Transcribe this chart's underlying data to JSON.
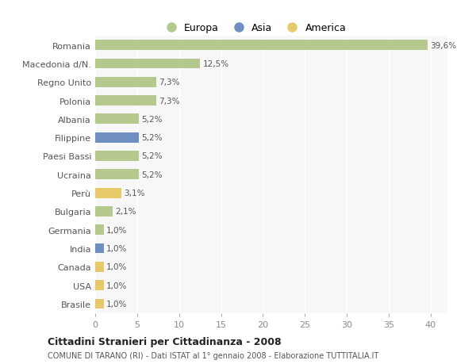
{
  "categories": [
    "Romania",
    "Macedonia d/N.",
    "Regno Unito",
    "Polonia",
    "Albania",
    "Filippine",
    "Paesi Bassi",
    "Ucraina",
    "Perù",
    "Bulgaria",
    "Germania",
    "India",
    "Canada",
    "USA",
    "Brasile"
  ],
  "values": [
    39.6,
    12.5,
    7.3,
    7.3,
    5.2,
    5.2,
    5.2,
    5.2,
    3.1,
    2.1,
    1.0,
    1.0,
    1.0,
    1.0,
    1.0
  ],
  "continents": [
    "Europa",
    "Europa",
    "Europa",
    "Europa",
    "Europa",
    "Asia",
    "Europa",
    "Europa",
    "America",
    "Europa",
    "Europa",
    "Asia",
    "America",
    "America",
    "America"
  ],
  "labels": [
    "39,6%",
    "12,5%",
    "7,3%",
    "7,3%",
    "5,2%",
    "5,2%",
    "5,2%",
    "5,2%",
    "3,1%",
    "2,1%",
    "1,0%",
    "1,0%",
    "1,0%",
    "1,0%",
    "1,0%"
  ],
  "color_europa": "#b5c98e",
  "color_asia": "#6e8fbf",
  "color_america": "#e8c96a",
  "background_color": "#ffffff",
  "plot_bg_color": "#f7f7f7",
  "grid_color": "#ffffff",
  "title": "Cittadini Stranieri per Cittadinanza - 2008",
  "subtitle": "COMUNE DI TARANO (RI) - Dati ISTAT al 1° gennaio 2008 - Elaborazione TUTTITALIA.IT",
  "xlim": [
    0,
    42
  ],
  "xticks": [
    0,
    5,
    10,
    15,
    20,
    25,
    30,
    35,
    40
  ],
  "legend_labels": [
    "Europa",
    "Asia",
    "America"
  ]
}
